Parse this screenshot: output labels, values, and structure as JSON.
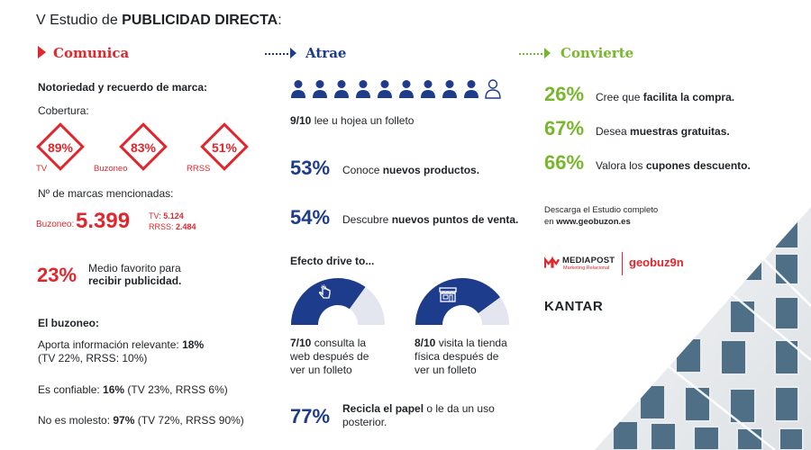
{
  "title": {
    "prefix": "V Estudio de ",
    "bold": "PUBLICIDAD DIRECTA",
    "suffix": ":"
  },
  "comunica": {
    "heading": "Comunica",
    "notoriedad": "Notoriedad y recuerdo de marca:",
    "cobertura": "Cobertura:",
    "diamonds": [
      {
        "value": "89%",
        "label": "TV"
      },
      {
        "value": "83%",
        "label": "Buzoneo"
      },
      {
        "value": "51%",
        "label": "RRSS"
      }
    ],
    "marcas_label": "Nº de marcas mencionadas:",
    "buzoneo_label": "Buzoneo:",
    "buzoneo_value": "5.399",
    "tv_label": "TV:",
    "tv_value": "5.124",
    "rrss_label": "RRSS:",
    "rrss_value": "2.484",
    "favorito_pct": "23%",
    "favorito_line1": "Medio favorito para",
    "favorito_line2": "recibir publicidad.",
    "buzoneo_heading": "El buzoneo:",
    "stat1_a": "Aporta información relevante: ",
    "stat1_b": "18%",
    "stat1_c": "(TV 22%, RRSS: 10%)",
    "stat2_a": "Es confiable: ",
    "stat2_b": "16%",
    "stat2_c": " (TV 23%, RRSS 6%)",
    "stat3_a": "No es molesto: ",
    "stat3_b": "97%",
    "stat3_c": " (TV 72%, RRSS 90%)"
  },
  "atrae": {
    "heading": "Atrae",
    "people_filled": 9,
    "people_total": 10,
    "folleto_a": "9/10",
    "folleto_b": " lee u hojea un folleto",
    "s1_pct": "53%",
    "s1_a": "Conoce ",
    "s1_b": "nuevos productos.",
    "s2_pct": "54%",
    "s2_a": "Descubre ",
    "s2_b": "nuevos puntos de venta.",
    "drive_heading": "Efecto drive to...",
    "gauge1": {
      "fraction": 0.7,
      "a": "7/10",
      "b": " consulta la",
      "c": "web después de",
      "d": "ver un folleto"
    },
    "gauge2": {
      "fraction": 0.8,
      "a": "8/10",
      "b": " visita la tienda",
      "c": "física después de",
      "d": "ver un folleto"
    },
    "recicla_pct": "77%",
    "recicla_a": "Recicla el papel",
    "recicla_b": " o le da un uso",
    "recicla_c": "posterior."
  },
  "convierte": {
    "heading": "Convierte",
    "stats": [
      {
        "pct": "26%",
        "a": "Cree que ",
        "b": "facilita la compra."
      },
      {
        "pct": "67%",
        "a": "Desea ",
        "b": "muestras gratuitas."
      },
      {
        "pct": "66%",
        "a": "Valora los ",
        "b": "cupones descuento."
      }
    ],
    "descarga1": "Descarga el Estudio completo",
    "descarga2_a": "en ",
    "descarga2_b": "www.geobuzon.es",
    "mediapost": "MEDIAPOST",
    "mediapost_sub": "Marketing Relacional",
    "geobuzon": "geobuz9n",
    "kantar": "KANTAR"
  },
  "colors": {
    "red": "#e1262d",
    "blue": "#1e3c8c",
    "green": "#78b72d",
    "gauge_bg": "#e3e6ef"
  }
}
